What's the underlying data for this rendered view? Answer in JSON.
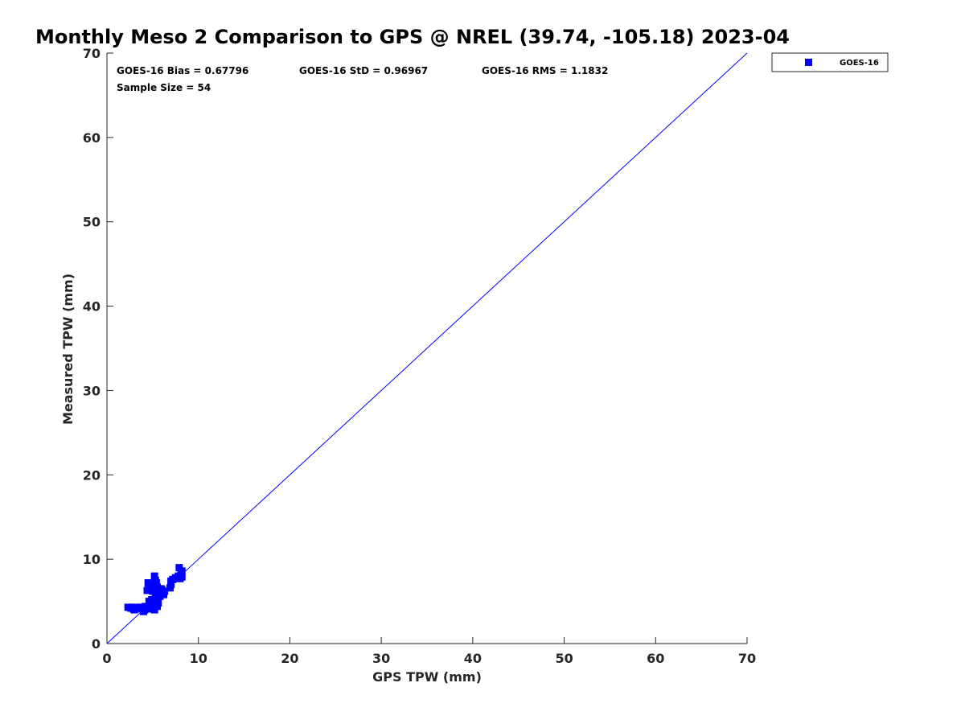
{
  "chart_data": {
    "type": "scatter",
    "title": "Monthly Meso 2 Comparison to GPS @ NREL (39.74, -105.18) 2023-04",
    "xlabel": "GPS TPW (mm)",
    "ylabel": "Measured TPW (mm)",
    "xlim": [
      0,
      70
    ],
    "ylim": [
      0,
      70
    ],
    "xticks": [
      0,
      10,
      20,
      30,
      40,
      50,
      60,
      70
    ],
    "yticks": [
      0,
      10,
      20,
      30,
      40,
      50,
      60,
      70
    ],
    "grid": false,
    "legend_position": "top-right, outside plot",
    "reference_line": {
      "from": [
        0,
        0
      ],
      "to": [
        70,
        70
      ],
      "color": "#0000ff"
    },
    "annotations": [
      "GOES-16 Bias = 0.67796",
      "GOES-16 StD = 0.96967",
      "GOES-16 RMS = 1.1832",
      "Sample Size = 54"
    ],
    "series": [
      {
        "name": "GOES-16",
        "color": "#0000ff",
        "marker": "square",
        "points": [
          [
            2.3,
            4.3
          ],
          [
            2.6,
            4.2
          ],
          [
            2.9,
            4.1
          ],
          [
            3.2,
            4.2
          ],
          [
            3.5,
            4.3
          ],
          [
            3.0,
            4.0
          ],
          [
            2.7,
            4.3
          ],
          [
            3.8,
            4.1
          ],
          [
            4.0,
            3.8
          ],
          [
            4.1,
            4.0
          ],
          [
            4.2,
            4.4
          ],
          [
            4.5,
            4.2
          ],
          [
            4.7,
            4.5
          ],
          [
            4.8,
            4.1
          ],
          [
            5.0,
            4.3
          ],
          [
            5.2,
            4.0
          ],
          [
            5.4,
            4.6
          ],
          [
            5.5,
            4.4
          ],
          [
            4.6,
            5.0
          ],
          [
            4.9,
            5.2
          ],
          [
            5.1,
            5.0
          ],
          [
            5.3,
            5.4
          ],
          [
            5.6,
            4.8
          ],
          [
            4.4,
            6.3
          ],
          [
            4.6,
            6.6
          ],
          [
            4.5,
            7.2
          ],
          [
            4.8,
            7.0
          ],
          [
            5.0,
            6.8
          ],
          [
            5.0,
            6.2
          ],
          [
            5.2,
            8.0
          ],
          [
            5.3,
            7.5
          ],
          [
            5.4,
            7.2
          ],
          [
            5.5,
            6.7
          ],
          [
            5.6,
            6.3
          ],
          [
            5.5,
            5.7
          ],
          [
            5.7,
            6.0
          ],
          [
            5.8,
            5.6
          ],
          [
            6.0,
            6.4
          ],
          [
            6.1,
            6.0
          ],
          [
            6.2,
            5.8
          ],
          [
            5.9,
            6.5
          ],
          [
            6.3,
            6.2
          ],
          [
            6.9,
            6.6
          ],
          [
            7.0,
            7.0
          ],
          [
            7.0,
            7.4
          ],
          [
            7.2,
            7.6
          ],
          [
            7.5,
            7.8
          ],
          [
            7.8,
            8.0
          ],
          [
            7.9,
            9.0
          ],
          [
            8.0,
            7.7
          ],
          [
            8.1,
            8.2
          ],
          [
            8.2,
            8.6
          ],
          [
            8.2,
            7.9
          ],
          [
            5.1,
            4.7
          ]
        ]
      }
    ]
  }
}
